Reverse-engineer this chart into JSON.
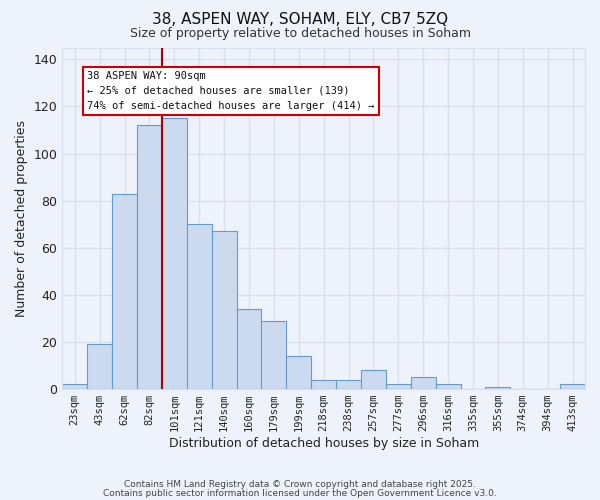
{
  "title": "38, ASPEN WAY, SOHAM, ELY, CB7 5ZQ",
  "subtitle": "Size of property relative to detached houses in Soham",
  "xlabel": "Distribution of detached houses by size in Soham",
  "ylabel": "Number of detached properties",
  "bar_labels": [
    "23sqm",
    "43sqm",
    "62sqm",
    "82sqm",
    "101sqm",
    "121sqm",
    "140sqm",
    "160sqm",
    "179sqm",
    "199sqm",
    "218sqm",
    "238sqm",
    "257sqm",
    "277sqm",
    "296sqm",
    "316sqm",
    "335sqm",
    "355sqm",
    "374sqm",
    "394sqm",
    "413sqm"
  ],
  "bar_values": [
    2,
    19,
    83,
    112,
    115,
    70,
    67,
    34,
    29,
    14,
    4,
    4,
    8,
    2,
    5,
    2,
    0,
    1,
    0,
    0,
    2
  ],
  "bar_color": "#ccdaf0",
  "bar_edge_color": "#6699cc",
  "bar_edge_width": 0.8,
  "ylim": [
    0,
    145
  ],
  "yticks": [
    0,
    20,
    40,
    60,
    80,
    100,
    120,
    140
  ],
  "vline_x": 3.5,
  "vline_color": "#aa0000",
  "annotation_title": "38 ASPEN WAY: 90sqm",
  "annotation_line1": "← 25% of detached houses are smaller (139)",
  "annotation_line2": "74% of semi-detached houses are larger (414) →",
  "background_color": "#eef2fb",
  "grid_color": "#d8e0f0",
  "footer1": "Contains HM Land Registry data © Crown copyright and database right 2025.",
  "footer2": "Contains public sector information licensed under the Open Government Licence v3.0."
}
